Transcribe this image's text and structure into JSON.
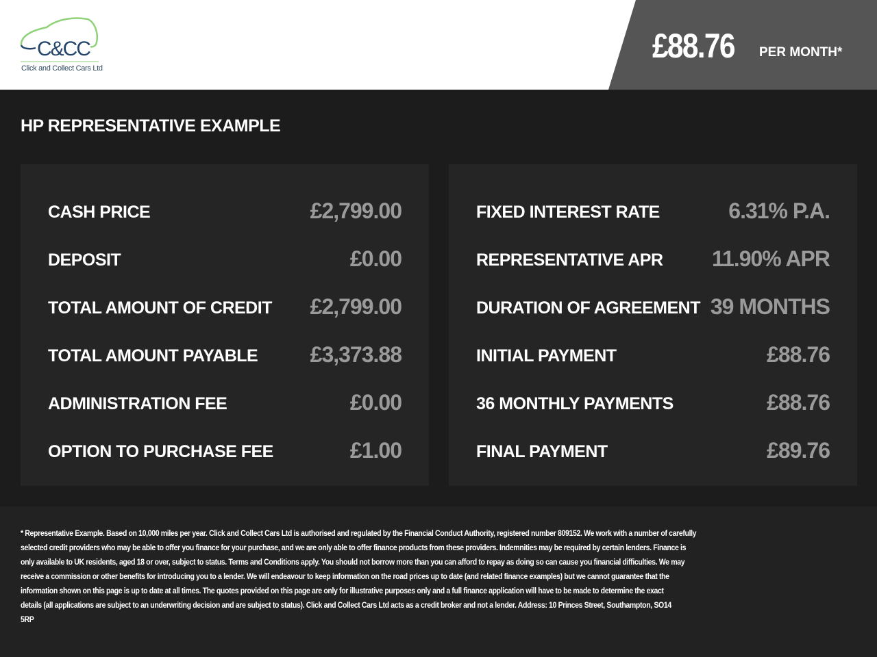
{
  "header": {
    "logo_text": "C&CC",
    "company_name": "Click and Collect Cars Ltd",
    "monthly_price": "£88.76",
    "per_month_label": "PER MONTH*"
  },
  "colors": {
    "header_bg": "#ffffff",
    "price_box_bg": "#555555",
    "page_bg": "#1c1c1c",
    "panel_bg": "#252525",
    "value_text": "#9a9a9a",
    "logo_green": "#8fd27a",
    "logo_blue": "#24456a"
  },
  "title": "HP REPRESENTATIVE EXAMPLE",
  "left_panel": [
    {
      "label": "CASH PRICE",
      "value": "£2,799.00"
    },
    {
      "label": "DEPOSIT",
      "value": "£0.00"
    },
    {
      "label": "TOTAL AMOUNT OF CREDIT",
      "value": "£2,799.00"
    },
    {
      "label": "TOTAL AMOUNT PAYABLE",
      "value": "£3,373.88"
    },
    {
      "label": "ADMINISTRATION FEE",
      "value": "£0.00"
    },
    {
      "label": "OPTION TO PURCHASE FEE",
      "value": "£1.00"
    }
  ],
  "right_panel": [
    {
      "label": "FIXED INTEREST RATE",
      "value": "6.31% P.A."
    },
    {
      "label": "REPRESENTATIVE APR",
      "value": "11.90% APR"
    },
    {
      "label": "DURATION OF AGREEMENT",
      "value": "39 MONTHS"
    },
    {
      "label": "INITIAL PAYMENT",
      "value": "£88.76"
    },
    {
      "label": "36 MONTHLY PAYMENTS",
      "value": "£88.76"
    },
    {
      "label": "FINAL PAYMENT",
      "value": "£89.76"
    }
  ],
  "footer_lines": [
    "* Representative Example. Based on 10,000 miles per year. Click and Collect Cars Ltd is authorised and regulated by the Financial Conduct Authority, registered number 809152. We work with a number of carefully",
    "selected credit providers who may be able to offer you finance for your purchase, and we are only able to offer finance products from these providers. Indemnities may be required by certain lenders. Finance is",
    "only available to UK residents, aged 18 or over, subject to status. Terms and Conditions apply. You should not borrow more than you can afford to repay as doing so can cause you financial difficulties. We may",
    "receive a commission or other benefits for introducing you to a lender. We will endeavour to keep information on the road prices up to date (and related finance examples) but we cannot guarantee that the",
    "information shown on this page is up to date at all times. The quotes provided on this page are only for illustrative purposes only and a full finance application will have to be made to determine the exact",
    "details (all applications are subject to an underwriting decision and are subject to status). Click and Collect Cars Ltd acts as a credit broker and not a lender. Address: 10 Princes Street, Southampton, SO14",
    "5RP"
  ]
}
